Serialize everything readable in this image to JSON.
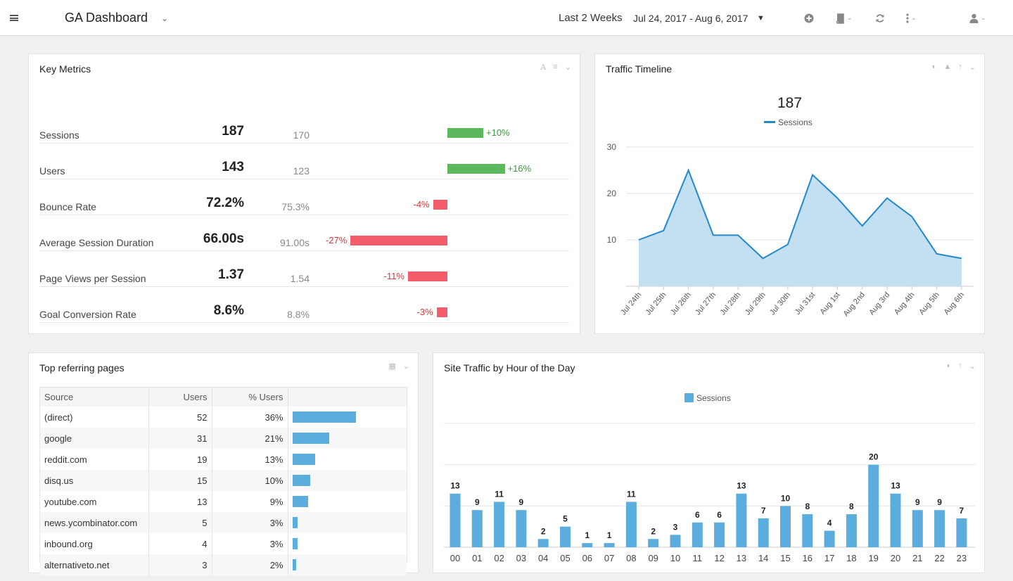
{
  "header": {
    "title": "GA Dashboard",
    "range_label": "Last 2 Weeks",
    "range_dates": "Jul 24, 2017 - Aug 6, 2017"
  },
  "key_metrics": {
    "title": "Key Metrics",
    "rows": [
      {
        "name": "Sessions",
        "value": "187",
        "previous": "170",
        "change": "+10%",
        "change_pct": 10
      },
      {
        "name": "Users",
        "value": "143",
        "previous": "123",
        "change": "+16%",
        "change_pct": 16
      },
      {
        "name": "Bounce Rate",
        "value": "72.2%",
        "previous": "75.3%",
        "change": "-4%",
        "change_pct": -4
      },
      {
        "name": "Average Session Duration",
        "value": "66.00s",
        "previous": "91.00s",
        "change": "-27%",
        "change_pct": -27
      },
      {
        "name": "Page Views per Session",
        "value": "1.37",
        "previous": "1.54",
        "change": "-11%",
        "change_pct": -11
      },
      {
        "name": "Goal Conversion Rate",
        "value": "8.6%",
        "previous": "8.8%",
        "change": "-3%",
        "change_pct": -3
      }
    ]
  },
  "traffic_timeline": {
    "title": "Traffic Timeline",
    "total": "187"
  },
  "referrers": {
    "title": "Top referring pages",
    "columns": [
      "Source",
      "Users",
      "% Users"
    ],
    "rows": [
      {
        "source": "(direct)",
        "users": "52",
        "pct": "36%",
        "share": 0.36
      },
      {
        "source": "google",
        "users": "31",
        "pct": "21%",
        "share": 0.21
      },
      {
        "source": "reddit.com",
        "users": "19",
        "pct": "13%",
        "share": 0.13
      },
      {
        "source": "disq.us",
        "users": "15",
        "pct": "10%",
        "share": 0.1
      },
      {
        "source": "youtube.com",
        "users": "13",
        "pct": "9%",
        "share": 0.09
      },
      {
        "source": "news.ycombinator.com",
        "users": "5",
        "pct": "3%",
        "share": 0.03
      },
      {
        "source": "inbound.org",
        "users": "4",
        "pct": "3%",
        "share": 0.03
      },
      {
        "source": "alternativeto.net",
        "users": "3",
        "pct": "2%",
        "share": 0.02
      }
    ]
  },
  "hourly": {
    "title": "Site Traffic by Hour of the Day"
  },
  "colors": {
    "positive": "#5cb85c",
    "negative": "#f25c6b",
    "positive_text": "#3a9a3a",
    "negative_text": "#d43a3a",
    "line": "#2288cc",
    "area": "#c3dff2",
    "bar": "#5aaddd"
  },
  "chart_data": [
    {
      "type": "area",
      "title": "Traffic Timeline",
      "headline": "187",
      "x": [
        "Jul 24th",
        "Jul 25th",
        "Jul 26th",
        "Jul 27th",
        "Jul 28th",
        "Jul 29th",
        "Jul 30th",
        "Jul 31st",
        "Aug 1st",
        "Aug 2nd",
        "Aug 3rd",
        "Aug 4th",
        "Aug 5th",
        "Aug 6th"
      ],
      "series": [
        {
          "name": "Sessions",
          "values": [
            10,
            12,
            25,
            11,
            11,
            6,
            9,
            24,
            19,
            13,
            19,
            15,
            7,
            6
          ]
        }
      ],
      "yticks": [
        10,
        20,
        30
      ],
      "ylim": [
        0,
        30
      ],
      "grid": true,
      "legend": "top"
    },
    {
      "type": "bar",
      "title": "Site Traffic by Hour of the Day",
      "categories": [
        "00",
        "01",
        "02",
        "03",
        "04",
        "05",
        "06",
        "07",
        "08",
        "09",
        "10",
        "11",
        "12",
        "13",
        "14",
        "15",
        "16",
        "17",
        "18",
        "19",
        "20",
        "21",
        "22",
        "23"
      ],
      "series": [
        {
          "name": "Sessions",
          "values": [
            13,
            9,
            11,
            9,
            2,
            5,
            1,
            1,
            11,
            2,
            3,
            6,
            6,
            13,
            7,
            10,
            8,
            4,
            8,
            20,
            13,
            9,
            9,
            7
          ]
        }
      ],
      "ylim": [
        0,
        30
      ],
      "grid": true,
      "data_labels": true,
      "legend": "top"
    }
  ]
}
